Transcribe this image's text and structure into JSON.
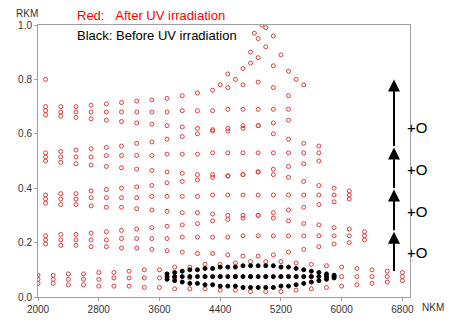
{
  "chart_data": {
    "type": "scatter",
    "x_label": "NKM",
    "y_label": "RKM",
    "xlim": [
      2000,
      6900
    ],
    "xticks": [
      2000,
      2800,
      3600,
      4400,
      5200,
      6000,
      6800
    ],
    "ylim": [
      0,
      1
    ],
    "yticks": [
      {
        "value": 0,
        "label": "0.0"
      },
      0.2,
      0.4,
      0.6,
      0.8,
      {
        "value": 1,
        "label": "1.0"
      }
    ],
    "grid": false,
    "annotations": [
      "+O",
      "+O",
      "+O",
      "+O"
    ],
    "series": [
      {
        "name": "Red:   After UV irradiation",
        "color": "#e03c3c",
        "marker": "circle-open",
        "x": [
          2000,
          2000,
          2000,
          2200,
          2200,
          2200,
          2400,
          2400,
          2400,
          2600,
          2600,
          2600,
          2800,
          2800,
          2800,
          3000,
          3000,
          3000,
          3200,
          3200,
          3200,
          3400,
          3400,
          3400,
          3600,
          3600,
          3600,
          3800,
          3800,
          3800,
          4000,
          4000,
          4000,
          4200,
          4200,
          4200,
          4400,
          4400,
          4400,
          4600,
          4600,
          4600,
          4800,
          4800,
          4800,
          5000,
          5000,
          5000,
          5200,
          5200,
          5200,
          5400,
          5400,
          5400,
          5600,
          5600,
          5600,
          5800,
          5800,
          5800,
          6000,
          6000,
          6000,
          6200,
          6200,
          6200,
          6400,
          6400,
          6400,
          6600,
          6600,
          6600,
          6800,
          6800,
          6800,
          2100,
          2100,
          2100,
          2300,
          2300,
          2300,
          2500,
          2500,
          2500,
          2700,
          2700,
          2700,
          2900,
          2900,
          2900,
          3100,
          3100,
          3100,
          3300,
          3300,
          3300,
          3500,
          3500,
          3500,
          3700,
          3700,
          3700,
          3900,
          3900,
          3900,
          4100,
          4100,
          4100,
          4300,
          4300,
          4300,
          4500,
          4500,
          4500,
          4700,
          4700,
          4700,
          4900,
          4900,
          4900,
          5100,
          5100,
          5100,
          5300,
          5300,
          5300,
          5500,
          5500,
          5500,
          5700,
          5700,
          5700,
          5900,
          5900,
          5900,
          6100,
          6100,
          6100,
          6300,
          6300,
          6300,
          2100,
          2100,
          2100,
          2300,
          2300,
          2300,
          2500,
          2500,
          2500,
          2700,
          2700,
          2700,
          2900,
          2900,
          2900,
          3100,
          3100,
          3100,
          3300,
          3300,
          3300,
          3500,
          3500,
          3500,
          3700,
          3700,
          3700,
          3900,
          3900,
          3900,
          4100,
          4100,
          4100,
          4300,
          4300,
          4300,
          4500,
          4500,
          4500,
          4700,
          4700,
          4700,
          4900,
          4900,
          4900,
          5100,
          5100,
          5100,
          5300,
          5300,
          5300,
          5500,
          5500,
          5500,
          5700,
          5700,
          5700,
          5900,
          5900,
          5900,
          6100,
          6100,
          6100,
          2100,
          2100,
          2100,
          2300,
          2300,
          2300,
          2500,
          2500,
          2500,
          2700,
          2700,
          2700,
          2900,
          2900,
          2900,
          3100,
          3100,
          3100,
          3300,
          3300,
          3300,
          3500,
          3500,
          3500,
          3700,
          3700,
          3700,
          3900,
          3900,
          3900,
          4100,
          4100,
          4100,
          4300,
          4300,
          4300,
          4500,
          4500,
          4500,
          4700,
          4700,
          4700,
          4900,
          4900,
          4900,
          5100,
          5100,
          5100,
          5300,
          5300,
          5300,
          5500,
          5500,
          5500,
          5700,
          5700,
          5700,
          2100,
          2100,
          2100,
          2300,
          2300,
          2300,
          2500,
          2500,
          2500,
          2700,
          2700,
          2700,
          2900,
          2900,
          2900,
          3100,
          3100,
          3100,
          3300,
          3300,
          3300,
          3500,
          3500,
          3500,
          3700,
          3700,
          3700,
          3900,
          3900,
          3900,
          4100,
          4100,
          4100,
          4300,
          4300,
          4300,
          4500,
          4500,
          4500,
          4700,
          4700,
          4700,
          4900,
          4900,
          4900,
          5100,
          5100,
          5100,
          5300,
          5300,
          5300,
          2100,
          4400,
          4500,
          4600,
          4700,
          4800,
          4800,
          4850,
          4900,
          4900,
          4950,
          5000,
          5000,
          5100,
          5100,
          5200,
          5300,
          5400,
          5500
        ],
        "values": [
          0.05,
          0.065,
          0.08,
          0.05,
          0.065,
          0.08,
          0.045,
          0.065,
          0.085,
          0.045,
          0.065,
          0.085,
          0.04,
          0.065,
          0.09,
          0.04,
          0.07,
          0.09,
          0.04,
          0.07,
          0.095,
          0.035,
          0.07,
          0.1,
          0.035,
          0.07,
          0.1,
          0.03,
          0.07,
          0.11,
          0.03,
          0.07,
          0.11,
          0.03,
          0.075,
          0.12,
          0.025,
          0.075,
          0.12,
          0.025,
          0.075,
          0.125,
          0.02,
          0.075,
          0.13,
          0.02,
          0.075,
          0.13,
          0.02,
          0.075,
          0.13,
          0.025,
          0.075,
          0.125,
          0.03,
          0.075,
          0.12,
          0.035,
          0.075,
          0.115,
          0.04,
          0.075,
          0.11,
          0.045,
          0.075,
          0.105,
          0.05,
          0.075,
          0.1,
          0.055,
          0.075,
          0.095,
          0.06,
          0.075,
          0.09,
          0.195,
          0.21,
          0.225,
          0.19,
          0.21,
          0.23,
          0.19,
          0.21,
          0.23,
          0.185,
          0.21,
          0.235,
          0.185,
          0.21,
          0.24,
          0.18,
          0.215,
          0.245,
          0.18,
          0.215,
          0.25,
          0.175,
          0.215,
          0.255,
          0.17,
          0.215,
          0.26,
          0.165,
          0.22,
          0.265,
          0.16,
          0.22,
          0.27,
          0.16,
          0.22,
          0.28,
          0.155,
          0.22,
          0.285,
          0.15,
          0.225,
          0.29,
          0.15,
          0.225,
          0.3,
          0.155,
          0.225,
          0.29,
          0.165,
          0.225,
          0.28,
          0.175,
          0.225,
          0.27,
          0.185,
          0.225,
          0.265,
          0.195,
          0.225,
          0.255,
          0.2,
          0.225,
          0.25,
          0.21,
          0.225,
          0.24,
          0.345,
          0.36,
          0.375,
          0.34,
          0.36,
          0.38,
          0.34,
          0.36,
          0.38,
          0.335,
          0.365,
          0.39,
          0.33,
          0.365,
          0.395,
          0.33,
          0.365,
          0.4,
          0.325,
          0.365,
          0.405,
          0.32,
          0.37,
          0.41,
          0.315,
          0.37,
          0.42,
          0.31,
          0.37,
          0.425,
          0.31,
          0.37,
          0.43,
          0.305,
          0.375,
          0.44,
          0.3,
          0.375,
          0.445,
          0.3,
          0.375,
          0.45,
          0.3,
          0.375,
          0.46,
          0.31,
          0.375,
          0.45,
          0.32,
          0.375,
          0.44,
          0.33,
          0.375,
          0.425,
          0.34,
          0.375,
          0.41,
          0.35,
          0.375,
          0.4,
          0.36,
          0.375,
          0.39,
          0.5,
          0.515,
          0.53,
          0.495,
          0.515,
          0.535,
          0.49,
          0.515,
          0.54,
          0.485,
          0.515,
          0.545,
          0.48,
          0.52,
          0.55,
          0.475,
          0.52,
          0.555,
          0.47,
          0.52,
          0.565,
          0.465,
          0.52,
          0.57,
          0.46,
          0.525,
          0.58,
          0.455,
          0.525,
          0.59,
          0.45,
          0.525,
          0.6,
          0.45,
          0.53,
          0.61,
          0.445,
          0.53,
          0.62,
          0.45,
          0.53,
          0.63,
          0.46,
          0.53,
          0.63,
          0.47,
          0.53,
          0.6,
          0.48,
          0.53,
          0.58,
          0.49,
          0.53,
          0.565,
          0.5,
          0.53,
          0.555,
          0.67,
          0.685,
          0.7,
          0.665,
          0.68,
          0.7,
          0.66,
          0.68,
          0.7,
          0.655,
          0.68,
          0.705,
          0.65,
          0.68,
          0.71,
          0.645,
          0.68,
          0.715,
          0.64,
          0.68,
          0.72,
          0.635,
          0.68,
          0.725,
          0.63,
          0.68,
          0.73,
          0.625,
          0.685,
          0.74,
          0.62,
          0.685,
          0.75,
          0.615,
          0.685,
          0.76,
          0.61,
          0.69,
          0.77,
          0.62,
          0.69,
          0.78,
          0.63,
          0.69,
          0.79,
          0.64,
          0.69,
          0.77,
          0.65,
          0.69,
          0.74,
          0.8,
          0.78,
          0.82,
          0.8,
          0.84,
          0.86,
          0.9,
          0.97,
          0.88,
          0.95,
          1.0,
          0.99,
          0.92,
          0.85,
          0.96,
          0.89,
          0.83,
          0.8,
          0.78
        ]
      },
      {
        "name": "Black: Before UV irradiation",
        "color": "#000000",
        "marker": "circle",
        "x": [
          3700,
          3700,
          3700,
          3800,
          3800,
          3800,
          3900,
          3900,
          3900,
          4000,
          4000,
          4000,
          4100,
          4100,
          4100,
          4200,
          4200,
          4200,
          4300,
          4300,
          4300,
          4400,
          4400,
          4400,
          4500,
          4500,
          4500,
          4600,
          4600,
          4600,
          4700,
          4700,
          4700,
          4800,
          4800,
          4800,
          4900,
          4900,
          4900,
          5000,
          5000,
          5000,
          5100,
          5100,
          5100,
          5200,
          5200,
          5200,
          5300,
          5300,
          5300,
          5400,
          5400,
          5400,
          5500,
          5500,
          5500,
          5600,
          5600,
          5600,
          5700,
          5700,
          5700,
          5800,
          5800,
          5800,
          5900,
          5900,
          5900
        ],
        "values": [
          0.065,
          0.075,
          0.085,
          0.06,
          0.075,
          0.09,
          0.055,
          0.075,
          0.095,
          0.05,
          0.075,
          0.1,
          0.05,
          0.075,
          0.1,
          0.045,
          0.075,
          0.105,
          0.045,
          0.075,
          0.105,
          0.04,
          0.075,
          0.11,
          0.04,
          0.075,
          0.11,
          0.04,
          0.075,
          0.11,
          0.035,
          0.075,
          0.115,
          0.035,
          0.075,
          0.115,
          0.035,
          0.075,
          0.115,
          0.035,
          0.075,
          0.115,
          0.035,
          0.075,
          0.115,
          0.04,
          0.075,
          0.11,
          0.04,
          0.075,
          0.11,
          0.045,
          0.075,
          0.105,
          0.05,
          0.075,
          0.1,
          0.055,
          0.075,
          0.095,
          0.06,
          0.075,
          0.09,
          0.065,
          0.075,
          0.085,
          0.07,
          0.075,
          0.08
        ]
      }
    ]
  }
}
